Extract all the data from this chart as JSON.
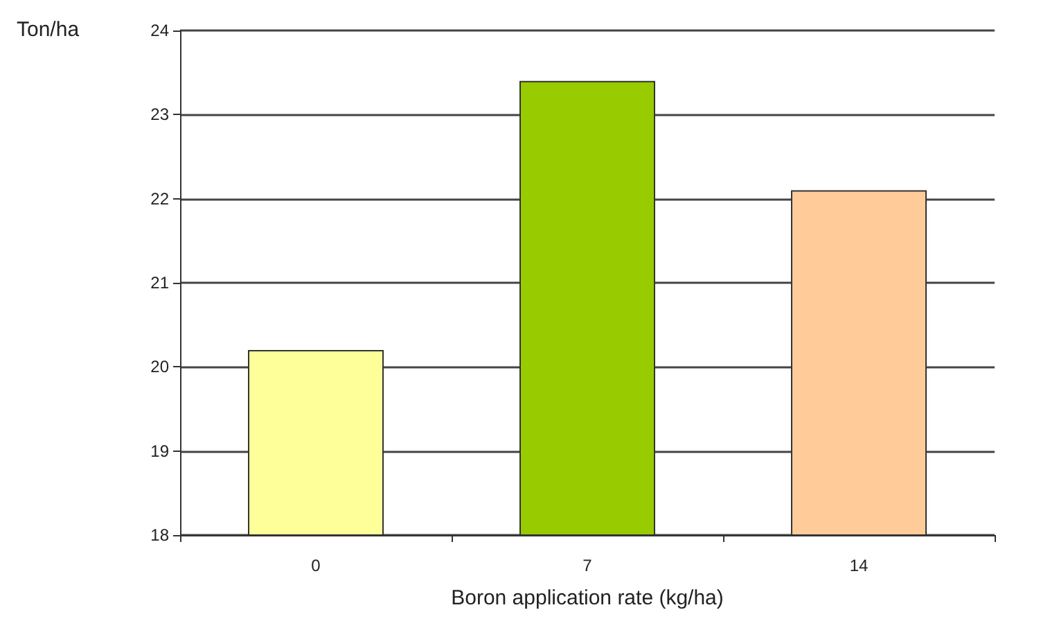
{
  "chart_data": {
    "type": "bar",
    "xlabel": "Boron application rate (kg/ha)",
    "ylabel": "Ton/ha",
    "categories": [
      "0",
      "7",
      "14"
    ],
    "values": [
      20.2,
      23.4,
      22.1
    ],
    "colors": [
      "#ffff99",
      "#99cc00",
      "#ffcc99"
    ],
    "ylim": [
      18,
      24
    ],
    "yticks": [
      18,
      19,
      20,
      21,
      22,
      23,
      24
    ],
    "grid": "y"
  }
}
